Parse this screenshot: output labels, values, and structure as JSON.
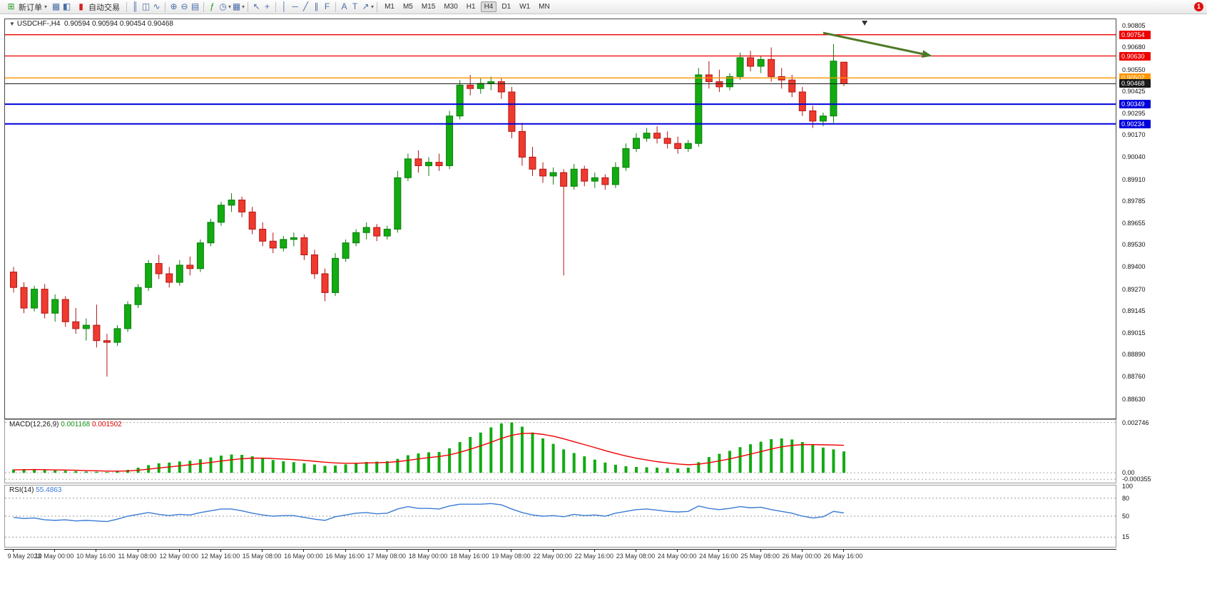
{
  "toolbar": {
    "new_order": "新订单",
    "autotrading": "自动交易",
    "timeframes": [
      "M1",
      "M5",
      "M15",
      "M30",
      "H1",
      "H4",
      "D1",
      "W1",
      "MN"
    ],
    "active_timeframe": "H4",
    "notification_count": "1",
    "icons": {
      "new_order": "⊞",
      "chart_window": "▦",
      "profiles": "◧",
      "autotrading": "▮",
      "bars": "║",
      "candles": "◫",
      "line": "∿",
      "zoom_in": "⊕",
      "zoom_out": "⊖",
      "tile": "▤",
      "indicators": "ƒ",
      "periods": "◷",
      "templates": "▦",
      "cursor": "↖",
      "crosshair": "+",
      "vline": "│",
      "hline": "─",
      "trendline": "╱",
      "channel": "∥",
      "fibo": "F",
      "text": "A",
      "label": "T",
      "shapes": "↗",
      "caret": "▾",
      "collapse": "▼"
    }
  },
  "chart": {
    "title": "USDCHF-,H4",
    "ohlc": "0.90594 0.90594 0.90454 0.90468",
    "price_axis": [
      "0.90805",
      "0.90680",
      "0.90550",
      "0.90425",
      "0.90295",
      "0.90170",
      "0.90040",
      "0.89910",
      "0.89785",
      "0.89655",
      "0.89530",
      "0.89400",
      "0.89270",
      "0.89145",
      "0.89015",
      "0.88890",
      "0.88760",
      "0.88630"
    ],
    "hlines": [
      {
        "price": 0.90754,
        "label": "0.90754",
        "color": "#ee0000",
        "width": 1.3,
        "type": "resistance-line-1"
      },
      {
        "price": 0.9063,
        "label": "0.90630",
        "color": "#ee0000",
        "width": 1.3,
        "type": "resistance-line-2"
      },
      {
        "price": 0.90502,
        "label": "0.90502",
        "color": "#ff9500",
        "width": 1.3,
        "type": "pivot-line"
      },
      {
        "price": 0.90468,
        "label": "0.90468",
        "color": "#1a1a1a",
        "width": 1.0,
        "type": "current-price"
      },
      {
        "price": 0.90349,
        "label": "0.90349",
        "color": "#0000dd",
        "width": 2.0,
        "type": "support-line-1"
      },
      {
        "price": 0.90234,
        "label": "0.90234",
        "color": "#0000dd",
        "width": 2.0,
        "type": "support-line-2"
      }
    ],
    "time_axis": [
      "9 May 2023",
      "10 May 00:00",
      "10 May 16:00",
      "11 May 08:00",
      "12 May 00:00",
      "12 May 16:00",
      "15 May 08:00",
      "16 May 00:00",
      "16 May 16:00",
      "17 May 08:00",
      "18 May 00:00",
      "18 May 16:00",
      "19 May 08:00",
      "22 May 00:00",
      "22 May 16:00",
      "23 May 08:00",
      "24 May 00:00",
      "24 May 16:00",
      "25 May 08:00",
      "26 May 00:00",
      "26 May 16:00"
    ]
  },
  "indicators": {
    "macd": {
      "label": "MACD(12,26,9)",
      "value_main": "0.001168",
      "value_signal": "0.001502",
      "axis": [
        "0.002746",
        "0.00",
        "-0.000355"
      ]
    },
    "rsi": {
      "label": "RSI(14)",
      "value": "55.4863",
      "axis": [
        "100",
        "80",
        "50",
        "15"
      ]
    }
  },
  "colors": {
    "up": "#12ab12",
    "up_border": "#0a7d0a",
    "down": "#ef3a2e",
    "down_border": "#b31414",
    "macd_bar": "#12ab12",
    "macd_signal": "#f00000",
    "rsi_line": "#3a7bd5",
    "arrow": "#4e7a27",
    "accent_red": "#ee0000",
    "accent_blue": "#0000dd",
    "accent_orange": "#ff9500"
  },
  "chart_data": {
    "type": "candlestick",
    "symbol": "USDCHF",
    "timeframe": "H4",
    "price_range": [
      0.8852,
      0.9084
    ],
    "candles": [
      [
        0.8937,
        0.894,
        0.8925,
        0.8928
      ],
      [
        0.8928,
        0.8931,
        0.8913,
        0.8916
      ],
      [
        0.8916,
        0.8929,
        0.8914,
        0.8927
      ],
      [
        0.8927,
        0.893,
        0.891,
        0.8913
      ],
      [
        0.8913,
        0.8924,
        0.8908,
        0.8921
      ],
      [
        0.8921,
        0.8923,
        0.8905,
        0.8908
      ],
      [
        0.8908,
        0.8916,
        0.8901,
        0.8904
      ],
      [
        0.8904,
        0.891,
        0.8897,
        0.8906
      ],
      [
        0.8906,
        0.8918,
        0.8893,
        0.8897
      ],
      [
        0.8897,
        0.8901,
        0.8876,
        0.8896
      ],
      [
        0.8896,
        0.8906,
        0.8894,
        0.8904
      ],
      [
        0.8904,
        0.892,
        0.8902,
        0.8918
      ],
      [
        0.8918,
        0.893,
        0.8916,
        0.8928
      ],
      [
        0.8928,
        0.8944,
        0.8926,
        0.8942
      ],
      [
        0.8942,
        0.8947,
        0.8933,
        0.8936
      ],
      [
        0.8936,
        0.894,
        0.8928,
        0.8931
      ],
      [
        0.8931,
        0.8944,
        0.8929,
        0.8941
      ],
      [
        0.8941,
        0.8946,
        0.8935,
        0.8939
      ],
      [
        0.8939,
        0.8956,
        0.8937,
        0.8954
      ],
      [
        0.8954,
        0.8968,
        0.8952,
        0.8966
      ],
      [
        0.8966,
        0.8978,
        0.8964,
        0.8976
      ],
      [
        0.8976,
        0.8983,
        0.8972,
        0.8979
      ],
      [
        0.8979,
        0.8981,
        0.8969,
        0.8972
      ],
      [
        0.8972,
        0.8975,
        0.8959,
        0.8962
      ],
      [
        0.8962,
        0.8966,
        0.8952,
        0.8955
      ],
      [
        0.8955,
        0.896,
        0.8948,
        0.8951
      ],
      [
        0.8951,
        0.8958,
        0.8949,
        0.8956
      ],
      [
        0.8956,
        0.896,
        0.8952,
        0.8957
      ],
      [
        0.8957,
        0.8959,
        0.8944,
        0.8947
      ],
      [
        0.8947,
        0.895,
        0.8933,
        0.8936
      ],
      [
        0.8936,
        0.8939,
        0.892,
        0.8925
      ],
      [
        0.8925,
        0.8948,
        0.8923,
        0.8945
      ],
      [
        0.8945,
        0.8956,
        0.8943,
        0.8954
      ],
      [
        0.8954,
        0.8962,
        0.8952,
        0.896
      ],
      [
        0.896,
        0.8966,
        0.8956,
        0.8963
      ],
      [
        0.8963,
        0.8965,
        0.8955,
        0.8958
      ],
      [
        0.8958,
        0.8964,
        0.8956,
        0.8962
      ],
      [
        0.8962,
        0.8996,
        0.896,
        0.8992
      ],
      [
        0.8992,
        0.9006,
        0.899,
        0.9003
      ],
      [
        0.9003,
        0.9008,
        0.8995,
        0.8999
      ],
      [
        0.8999,
        0.9004,
        0.8993,
        0.9001
      ],
      [
        0.9001,
        0.9006,
        0.8996,
        0.8999
      ],
      [
        0.8999,
        0.9031,
        0.8997,
        0.9028
      ],
      [
        0.9028,
        0.9049,
        0.9026,
        0.9046
      ],
      [
        0.9046,
        0.9052,
        0.904,
        0.9044
      ],
      [
        0.9044,
        0.905,
        0.9041,
        0.9047
      ],
      [
        0.9047,
        0.9051,
        0.9043,
        0.9048
      ],
      [
        0.9048,
        0.905,
        0.9038,
        0.9042
      ],
      [
        0.9042,
        0.9045,
        0.9015,
        0.9019
      ],
      [
        0.9019,
        0.9024,
        0.8999,
        0.9004
      ],
      [
        0.9004,
        0.901,
        0.8993,
        0.8997
      ],
      [
        0.8997,
        0.9001,
        0.8989,
        0.8993
      ],
      [
        0.8993,
        0.8998,
        0.8988,
        0.8995
      ],
      [
        0.8995,
        0.8997,
        0.8935,
        0.8987
      ],
      [
        0.8987,
        0.9,
        0.8985,
        0.8997
      ],
      [
        0.8997,
        0.8999,
        0.8987,
        0.899
      ],
      [
        0.899,
        0.8995,
        0.8986,
        0.8992
      ],
      [
        0.8992,
        0.8994,
        0.8985,
        0.8988
      ],
      [
        0.8988,
        0.9001,
        0.8986,
        0.8998
      ],
      [
        0.8998,
        0.9012,
        0.8996,
        0.9009
      ],
      [
        0.9009,
        0.9018,
        0.9007,
        0.9015
      ],
      [
        0.9015,
        0.9021,
        0.9013,
        0.9018
      ],
      [
        0.9018,
        0.9022,
        0.9012,
        0.9015
      ],
      [
        0.9015,
        0.9019,
        0.9009,
        0.9012
      ],
      [
        0.9012,
        0.9016,
        0.9006,
        0.9009
      ],
      [
        0.9009,
        0.9014,
        0.9007,
        0.9012
      ],
      [
        0.9012,
        0.9056,
        0.901,
        0.9052
      ],
      [
        0.9052,
        0.906,
        0.9044,
        0.9048
      ],
      [
        0.9048,
        0.9055,
        0.9042,
        0.9045
      ],
      [
        0.9045,
        0.9053,
        0.9043,
        0.9051
      ],
      [
        0.9051,
        0.9065,
        0.9049,
        0.9062
      ],
      [
        0.9062,
        0.9066,
        0.9054,
        0.9057
      ],
      [
        0.9057,
        0.9063,
        0.9053,
        0.9061
      ],
      [
        0.9061,
        0.9068,
        0.9048,
        0.9051
      ],
      [
        0.9051,
        0.9056,
        0.9044,
        0.9049
      ],
      [
        0.9049,
        0.9052,
        0.9039,
        0.9042
      ],
      [
        0.9042,
        0.9045,
        0.9028,
        0.9031
      ],
      [
        0.9031,
        0.9034,
        0.9021,
        0.9025
      ],
      [
        0.9025,
        0.903,
        0.9022,
        0.9028
      ],
      [
        0.9028,
        0.907,
        0.9024,
        0.906
      ],
      [
        0.90594,
        0.90594,
        0.90454,
        0.90468
      ]
    ],
    "macd": {
      "range": [
        -0.0005,
        0.00285
      ],
      "levels": [
        0.002746,
        0,
        -0.000355
      ],
      "histogram": [
        0.00018,
        0.0002,
        0.00019,
        0.00016,
        0.00013,
        0.00011,
        9e-05,
        7e-05,
        6e-05,
        4e-05,
        8e-05,
        0.00016,
        0.00028,
        0.00042,
        0.00052,
        0.00056,
        0.00062,
        0.00066,
        0.00074,
        0.00084,
        0.00094,
        0.001,
        0.00098,
        0.0009,
        0.0008,
        0.0007,
        0.00063,
        0.00058,
        0.00052,
        0.00045,
        0.00038,
        0.0004,
        0.00046,
        0.00054,
        0.00059,
        0.00061,
        0.00063,
        0.00076,
        0.00096,
        0.00106,
        0.00112,
        0.00114,
        0.00134,
        0.00168,
        0.00196,
        0.0022,
        0.00248,
        0.0027,
        0.00275,
        0.00252,
        0.0022,
        0.00188,
        0.00158,
        0.00128,
        0.00108,
        0.0009,
        0.00072,
        0.00056,
        0.00044,
        0.00036,
        0.00032,
        0.0003,
        0.00028,
        0.00026,
        0.00024,
        0.00028,
        0.00058,
        0.00086,
        0.00104,
        0.0012,
        0.0014,
        0.00156,
        0.0017,
        0.00184,
        0.00188,
        0.00182,
        0.00168,
        0.00152,
        0.00138,
        0.00128,
        0.001168
      ],
      "signal": [
        0.00016,
        0.00017,
        0.00018,
        0.00017,
        0.00016,
        0.00015,
        0.00014,
        0.00012,
        0.00011,
        9e-05,
        9e-05,
        0.0001,
        0.00014,
        0.0002,
        0.00026,
        0.00032,
        0.00038,
        0.00044,
        0.0005,
        0.00057,
        0.00064,
        0.00071,
        0.00077,
        0.0008,
        0.0008,
        0.00078,
        0.00075,
        0.00072,
        0.00068,
        0.00063,
        0.00058,
        0.00054,
        0.00052,
        0.00052,
        0.00054,
        0.00055,
        0.00057,
        0.00061,
        0.00068,
        0.00076,
        0.00083,
        0.00089,
        0.00098,
        0.00112,
        0.00129,
        0.00147,
        0.00167,
        0.00188,
        0.00205,
        0.00215,
        0.00216,
        0.0021,
        0.002,
        0.00186,
        0.0017,
        0.00154,
        0.00138,
        0.00121,
        0.00106,
        0.00092,
        0.0008,
        0.0007,
        0.00061,
        0.00054,
        0.00048,
        0.00044,
        0.00047,
        0.00055,
        0.00065,
        0.00076,
        0.00089,
        0.00102,
        0.00116,
        0.0013,
        0.00142,
        0.0015,
        0.00154,
        0.00154,
        0.00153,
        0.00152,
        0.001502
      ]
    },
    "rsi": {
      "range": [
        0,
        100
      ],
      "levels": [
        80,
        50,
        15
      ],
      "values": [
        48,
        46,
        47,
        44,
        43,
        44,
        42,
        43,
        42,
        41,
        45,
        50,
        53,
        56,
        53,
        51,
        53,
        52,
        56,
        59,
        62,
        62,
        59,
        55,
        52,
        50,
        51,
        51,
        48,
        45,
        43,
        49,
        52,
        55,
        56,
        54,
        55,
        62,
        66,
        63,
        63,
        62,
        67,
        70,
        70,
        70,
        71,
        69,
        62,
        56,
        52,
        50,
        51,
        49,
        53,
        51,
        52,
        50,
        55,
        58,
        61,
        62,
        60,
        58,
        57,
        58,
        67,
        63,
        61,
        63,
        66,
        64,
        65,
        61,
        58,
        55,
        50,
        47,
        49,
        58,
        55.4863
      ]
    },
    "trend_arrow": {
      "i1": 78,
      "p1": 0.90765,
      "i2": 88.5,
      "p2": 0.9063
    },
    "shift_marker_index": 82
  }
}
